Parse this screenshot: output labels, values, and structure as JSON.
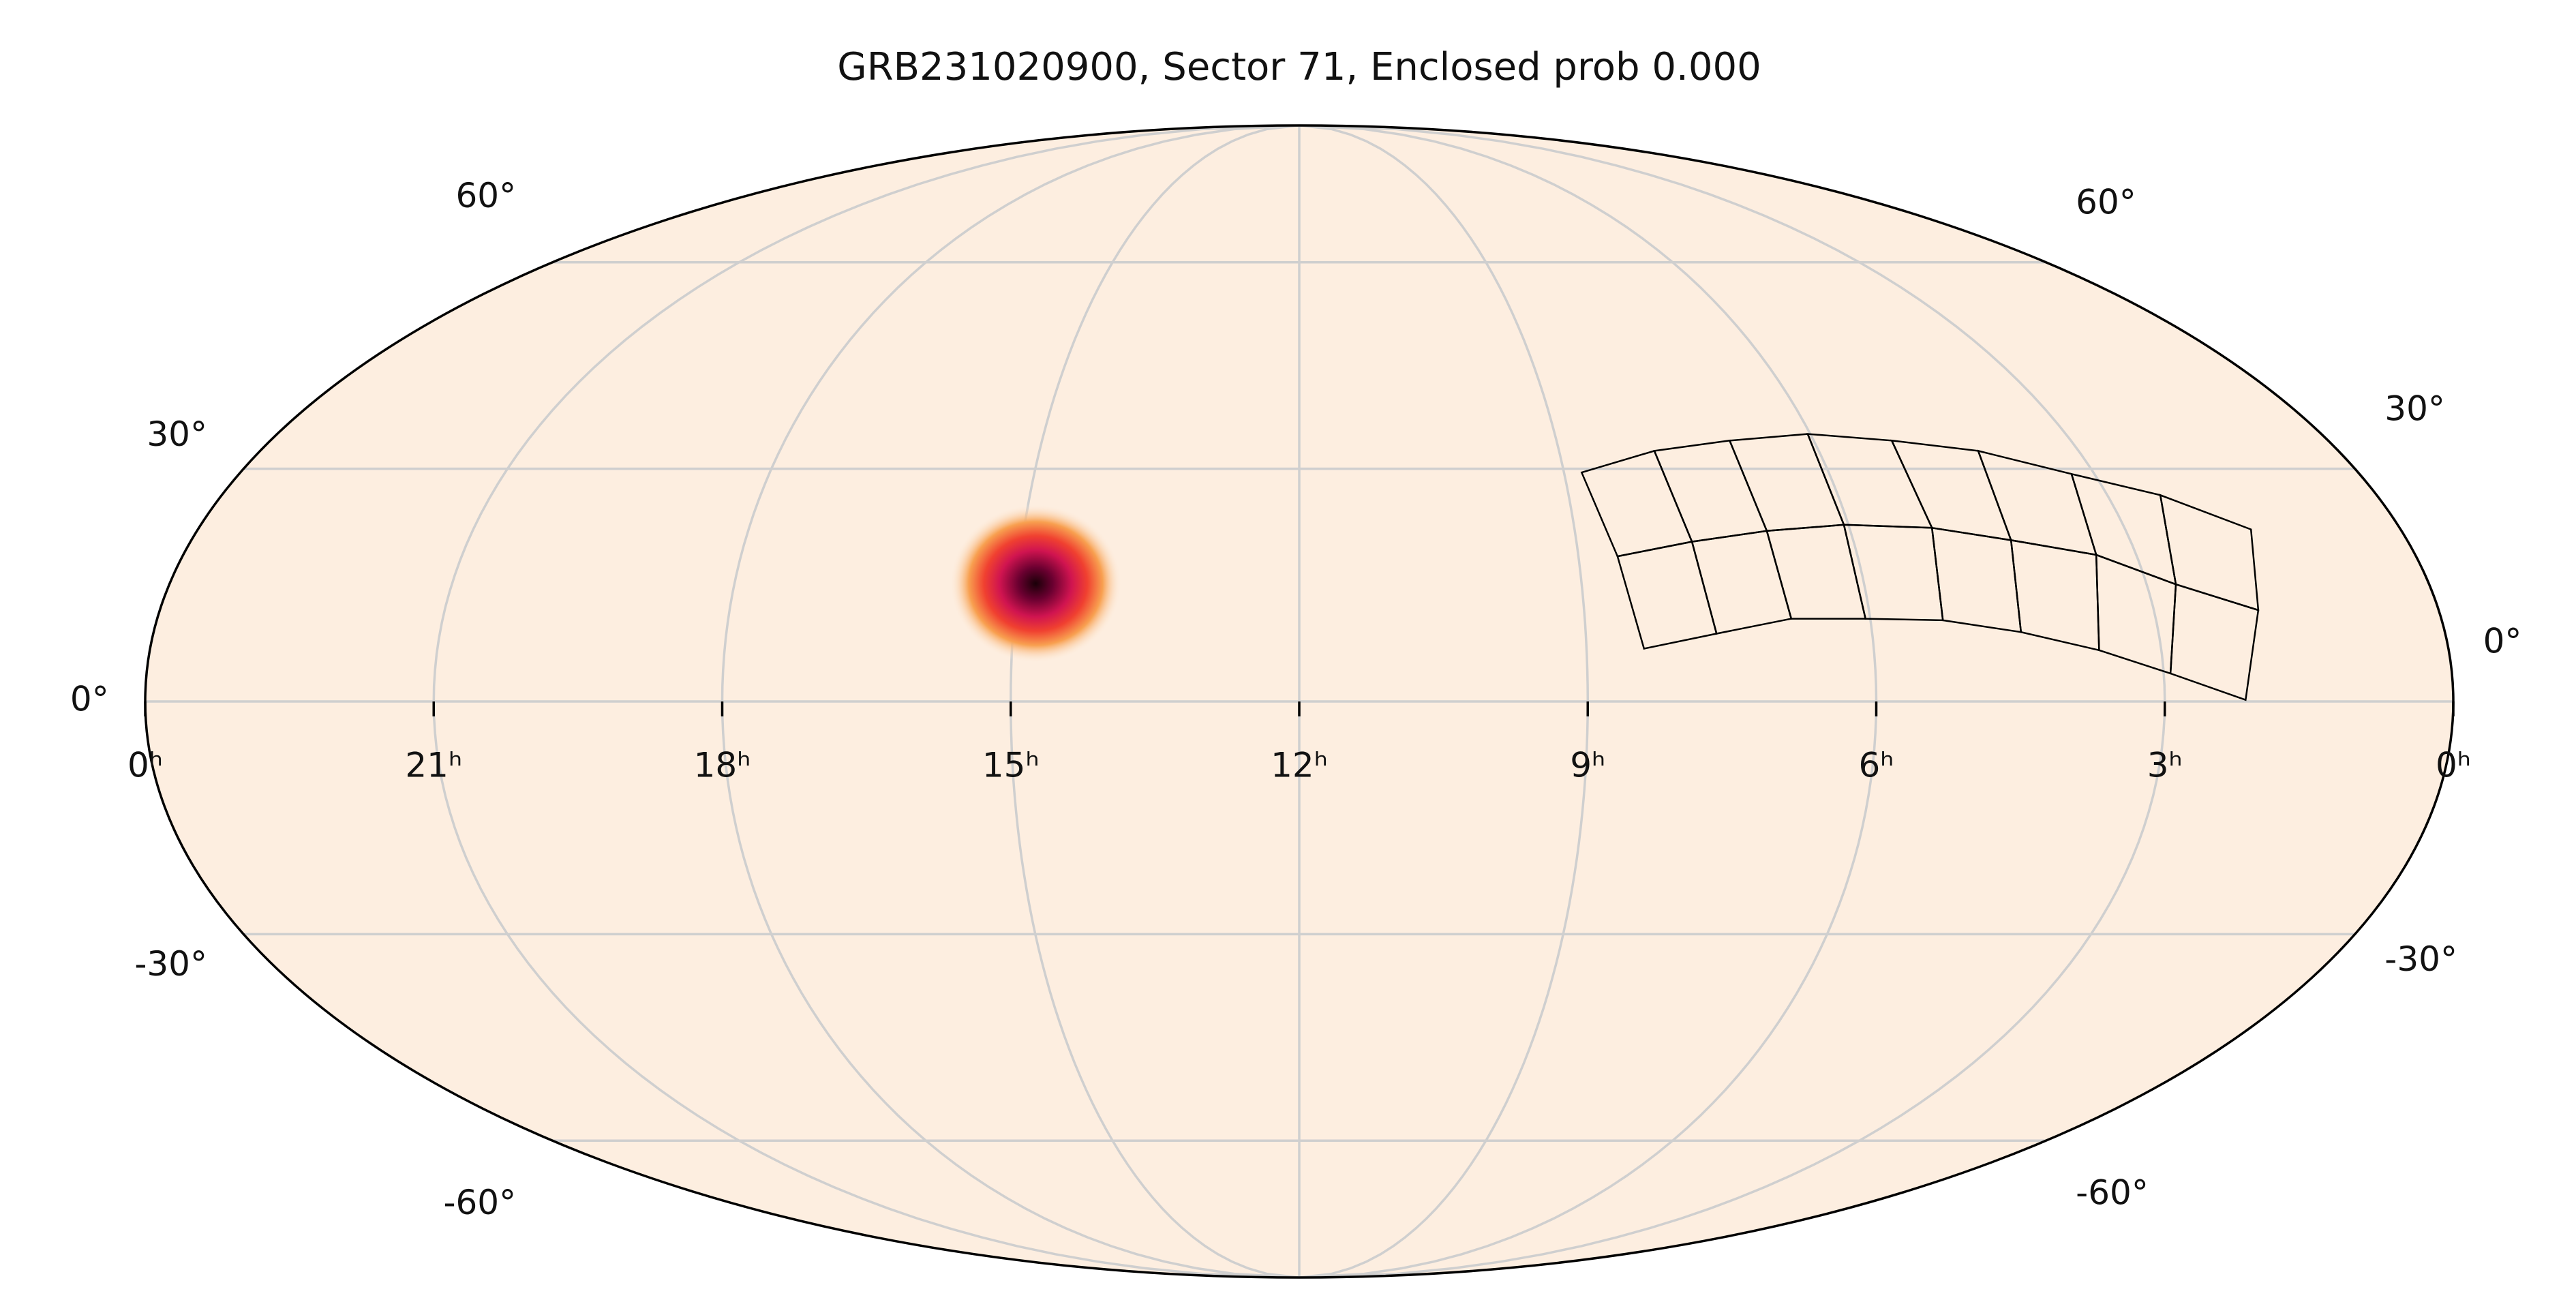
{
  "chart_data": {
    "type": "mollweide",
    "title": "GRB231020900, Sector 71, Enclosed prob 0.000",
    "xlim": [
      24,
      0
    ],
    "ylim": [
      -90,
      90
    ],
    "xticks": [
      {
        "value": 24,
        "label": "0ʰ"
      },
      {
        "value": 21,
        "label": "21ʰ"
      },
      {
        "value": 18,
        "label": "18ʰ"
      },
      {
        "value": 15,
        "label": "15ʰ"
      },
      {
        "value": 12,
        "label": "12ʰ"
      },
      {
        "value": 9,
        "label": "9ʰ"
      },
      {
        "value": 6,
        "label": "6ʰ"
      },
      {
        "value": 3,
        "label": "3ʰ"
      },
      {
        "value": 0,
        "label": "0ʰ"
      }
    ],
    "yticks": [
      {
        "value": -60,
        "label": "-60°"
      },
      {
        "value": -30,
        "label": "-30°"
      },
      {
        "value": 0,
        "label": "0°"
      },
      {
        "value": 30,
        "label": "30°"
      },
      {
        "value": 60,
        "label": "60°"
      }
    ],
    "grid": true,
    "background": "#fdeee0",
    "localization": {
      "ra": 14.8,
      "dec": 15
    },
    "footprint_grid": [
      [
        [
          8.8,
          29.5
        ],
        [
          7.9,
          32.4
        ],
        [
          6.98,
          33.8
        ],
        [
          6.03,
          34.7
        ],
        [
          5.09,
          33.8
        ],
        [
          4.16,
          32.4
        ],
        [
          3.26,
          29.3
        ],
        [
          2.41,
          26.5
        ],
        [
          1.63,
          22.0
        ]
      ],
      [
        [
          8.58,
          18.5
        ],
        [
          7.75,
          20.4
        ],
        [
          6.91,
          21.8
        ],
        [
          6.05,
          22.6
        ],
        [
          5.1,
          22.2
        ],
        [
          4.29,
          20.6
        ],
        [
          3.43,
          18.7
        ],
        [
          2.69,
          14.9
        ],
        [
          1.9,
          11.6
        ]
      ],
      [
        [
          8.4,
          6.7
        ],
        [
          7.63,
          8.6
        ],
        [
          6.83,
          10.5
        ],
        [
          6.05,
          10.5
        ],
        [
          5.24,
          10.3
        ],
        [
          4.44,
          8.8
        ],
        [
          3.65,
          6.5
        ],
        [
          2.93,
          3.55
        ],
        [
          2.16,
          0.2
        ]
      ]
    ]
  }
}
